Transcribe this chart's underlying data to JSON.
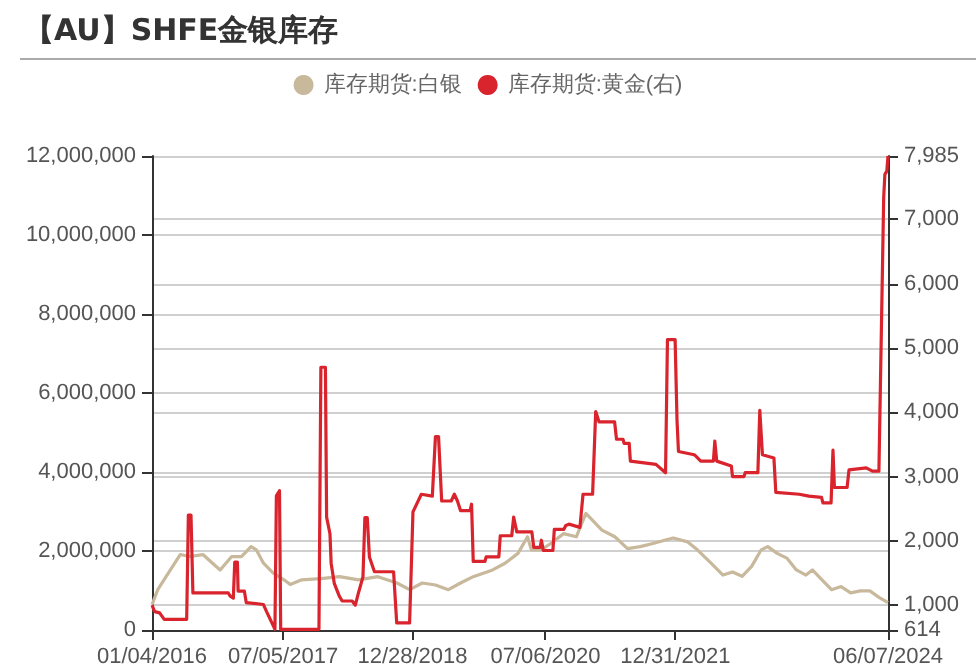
{
  "chart_data": {
    "type": "line",
    "title": "【AU】SHFE金银库存",
    "legend": "top",
    "grid": true,
    "xlim": [
      "2016-01-04",
      "2024-06-07"
    ],
    "xticks": [
      {
        "value": "2016-01-04",
        "label": "01/04/2016"
      },
      {
        "value": "2017-07-05",
        "label": "07/05/2017"
      },
      {
        "value": "2018-12-28",
        "label": "12/28/2018"
      },
      {
        "value": "2020-07-06",
        "label": "07/06/2020"
      },
      {
        "value": "2021-12-31",
        "label": "12/31/2021"
      },
      {
        "value": "2024-06-07",
        "label": "06/07/2024"
      }
    ],
    "ylim": [
      0,
      12000000
    ],
    "yticks": [
      0,
      {
        "value": 2000000,
        "label": "2,000,000"
      },
      {
        "value": 4000000,
        "label": "4,000,000"
      },
      {
        "value": 6000000,
        "label": "6,000,000"
      },
      {
        "value": 8000000,
        "label": "8,000,000"
      },
      {
        "value": 10000000,
        "label": "10,000,000"
      },
      {
        "value": 12000000,
        "label": "12,000,000"
      }
    ],
    "y2lim": [
      614,
      7985
    ],
    "y2ticks": [
      614,
      {
        "value": 1000,
        "label": "1,000"
      },
      {
        "value": 2000,
        "label": "2,000"
      },
      {
        "value": 3000,
        "label": "3,000"
      },
      {
        "value": 4000,
        "label": "4,000"
      },
      {
        "value": 5000,
        "label": "5,000"
      },
      {
        "value": 6000,
        "label": "6,000"
      },
      {
        "value": 7000,
        "label": "7,000"
      },
      {
        "value": 7985,
        "label": "7,985"
      }
    ],
    "series": [
      {
        "name": "库存期货:白银",
        "color": "#c8b89c",
        "x": [
          "2016-01-04",
          "2016-01-28",
          "2016-03-21",
          "2016-05-01",
          "2016-06-11",
          "2016-08-04",
          "2016-09-13",
          "2016-10-15",
          "2016-12-02",
          "2017-01-12",
          "2017-02-21",
          "2017-03-15",
          "2017-04-14",
          "2017-05-25",
          "2017-07-09",
          "2017-08-04",
          "2017-09-21",
          "2017-12-10",
          "2018-02-26",
          "2018-05-17",
          "2018-08-05",
          "2018-10-24",
          "2018-12-16",
          "2019-02-07",
          "2019-04-03",
          "2019-05-27",
          "2019-07-17",
          "2019-09-08",
          "2019-11-28",
          "2020-01-19",
          "2020-03-13",
          "2020-04-22",
          "2020-05-08",
          "2020-06-18",
          "2020-07-28",
          "2020-09-20",
          "2020-11-12",
          "2020-12-22",
          "2021-01-18",
          "2021-02-27",
          "2021-04-22",
          "2021-06-14",
          "2021-08-06",
          "2021-09-28",
          "2021-11-20",
          "2021-12-22",
          "2022-02-21",
          "2022-04-02",
          "2022-05-25",
          "2022-07-18",
          "2022-08-27",
          "2022-10-06",
          "2022-11-15",
          "2022-12-25",
          "2023-01-21",
          "2023-03-02",
          "2023-04-11",
          "2023-05-21",
          "2023-06-30",
          "2023-07-27",
          "2023-09-05",
          "2023-10-15",
          "2023-11-24",
          "2024-01-03",
          "2024-02-12",
          "2024-03-23",
          "2024-05-02",
          "2024-06-07"
        ],
        "values": [
          640000,
          1020000,
          1520000,
          1910000,
          1860000,
          1910000,
          1690000,
          1520000,
          1860000,
          1860000,
          2110000,
          2030000,
          1690000,
          1440000,
          1270000,
          1150000,
          1270000,
          1300000,
          1350000,
          1270000,
          1350000,
          1190000,
          1020000,
          1190000,
          1140000,
          1020000,
          1190000,
          1350000,
          1520000,
          1690000,
          1940000,
          2360000,
          2030000,
          2030000,
          2190000,
          2440000,
          2360000,
          2950000,
          2780000,
          2530000,
          2360000,
          2060000,
          2110000,
          2190000,
          2280000,
          2330000,
          2230000,
          2030000,
          1720000,
          1390000,
          1470000,
          1360000,
          1610000,
          2030000,
          2110000,
          1940000,
          1820000,
          1520000,
          1390000,
          1520000,
          1270000,
          1020000,
          1100000,
          940000,
          990000,
          990000,
          820000,
          690000
        ]
      },
      {
        "name": "库存期货:黄金(右)",
        "color": "#d9232d",
        "axis": "y2",
        "x": [
          "2016-01-04",
          "2016-01-15",
          "2016-02-05",
          "2016-02-24",
          "2016-05-28",
          "2016-06-04",
          "2016-06-15",
          "2016-06-23",
          "2016-11-18",
          "2016-11-26",
          "2016-12-09",
          "2016-12-15",
          "2016-12-26",
          "2016-12-29",
          "2017-01-24",
          "2017-02-01",
          "2017-04-14",
          "2017-04-27",
          "2017-06-01",
          "2017-06-07",
          "2017-06-20",
          "2017-06-25",
          "2017-12-02",
          "2017-12-10",
          "2017-12-29",
          "2018-01-03",
          "2018-01-17",
          "2018-01-22",
          "2018-02-04",
          "2018-02-25",
          "2018-03-09",
          "2018-04-20",
          "2018-05-03",
          "2018-05-16",
          "2018-06-04",
          "2018-06-12",
          "2018-06-22",
          "2018-07-01",
          "2018-07-22",
          "2018-10-10",
          "2018-10-23",
          "2018-12-16",
          "2018-12-30",
          "2019-02-03",
          "2019-03-21",
          "2019-04-03",
          "2019-04-16",
          "2019-04-29",
          "2019-06-08",
          "2019-06-21",
          "2019-07-04",
          "2019-07-17",
          "2019-08-26",
          "2019-09-01",
          "2019-09-08",
          "2019-10-27",
          "2019-11-01",
          "2019-12-24",
          "2019-12-30",
          "2020-02-16",
          "2020-02-24",
          "2020-03-08",
          "2020-05-10",
          "2020-05-18",
          "2020-06-14",
          "2020-06-19",
          "2020-06-27",
          "2020-08-06",
          "2020-08-12",
          "2020-09-21",
          "2020-09-29",
          "2020-10-12",
          "2020-11-27",
          "2020-12-10",
          "2021-01-19",
          "2021-02-01",
          "2021-02-15",
          "2021-04-21",
          "2021-04-29",
          "2021-05-26",
          "2021-05-31",
          "2021-06-21",
          "2021-06-26",
          "2021-10-11",
          "2021-11-20",
          "2021-11-28",
          "2021-12-30",
          "2022-01-07",
          "2022-01-13",
          "2022-03-20",
          "2022-04-03",
          "2022-04-16",
          "2022-06-08",
          "2022-06-14",
          "2022-06-22",
          "2022-08-22",
          "2022-08-27",
          "2022-10-14",
          "2022-10-19",
          "2022-12-11",
          "2022-12-19",
          "2022-12-30",
          "2023-02-16",
          "2023-02-24",
          "2023-06-02",
          "2023-07-12",
          "2023-09-03",
          "2023-09-09",
          "2023-10-13",
          "2023-10-21",
          "2023-10-27",
          "2023-12-19",
          "2023-12-27",
          "2024-03-08",
          "2024-04-03",
          "2024-04-30",
          "2024-05-20",
          "2024-05-25",
          "2024-06-02",
          "2024-06-07"
        ],
        "values": [
          1000,
          900,
          880,
          780,
          780,
          2400,
          2400,
          1190,
          1190,
          1140,
          1110,
          1670,
          1670,
          1220,
          1220,
          1040,
          1010,
          900,
          625,
          2700,
          2780,
          625,
          625,
          4700,
          4700,
          2370,
          2110,
          1650,
          1340,
          1140,
          1065,
          1065,
          1000,
          1190,
          1440,
          2360,
          2360,
          1750,
          1520,
          1520,
          725,
          725,
          2450,
          2725,
          2695,
          3620,
          3620,
          2620,
          2620,
          2725,
          2620,
          2470,
          2470,
          2570,
          1680,
          1680,
          1750,
          1750,
          2080,
          2080,
          2370,
          2140,
          2140,
          1900,
          1900,
          2010,
          1850,
          1850,
          2180,
          2180,
          2240,
          2260,
          2210,
          2725,
          2725,
          4010,
          3850,
          3850,
          3580,
          3580,
          3515,
          3515,
          3240,
          3190,
          3060,
          5130,
          5130,
          3870,
          3390,
          3340,
          3290,
          3240,
          3240,
          3550,
          3240,
          3165,
          3000,
          3000,
          3060,
          3060,
          4030,
          3340,
          3290,
          2755,
          2725,
          2695,
          2675,
          2590,
          2590,
          3410,
          2830,
          2830,
          3105,
          3135,
          3085,
          3085,
          7340,
          7700,
          7750,
          7985
        ]
      }
    ]
  }
}
